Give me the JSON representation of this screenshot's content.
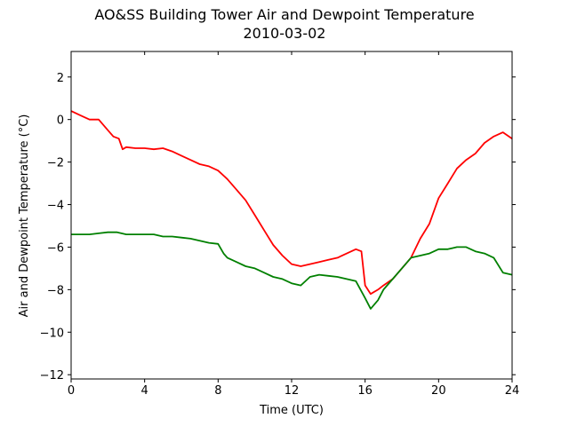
{
  "chart_data": {
    "type": "line",
    "title": "AO&SS Building Tower Air and Dewpoint Temperature",
    "subtitle": "2010-03-02",
    "xlabel": "Time (UTC)",
    "ylabel": "Air and Dewpoint Temperature (°C)",
    "xlim": [
      0,
      24
    ],
    "ylim": [
      -12.2,
      3.2
    ],
    "xticks": [
      0,
      4,
      8,
      12,
      16,
      20,
      24
    ],
    "yticks": [
      2,
      0,
      -2,
      -4,
      -6,
      -8,
      -10,
      -12
    ],
    "grid": false,
    "legend": "none",
    "series": [
      {
        "color": "#ff0000",
        "x": [
          0,
          0.5,
          1,
          1.5,
          2,
          2.3,
          2.6,
          2.8,
          3,
          3.5,
          4,
          4.5,
          5,
          5.5,
          6,
          6.5,
          7,
          7.5,
          8,
          8.5,
          9,
          9.5,
          10,
          10.5,
          11,
          11.5,
          12,
          12.5,
          13,
          13.5,
          14,
          14.5,
          15,
          15.5,
          15.8,
          16,
          16.3,
          16.7,
          17,
          17.5,
          18,
          18.5,
          19,
          19.5,
          20,
          20.5,
          21,
          21.5,
          22,
          22.5,
          23,
          23.5,
          24
        ],
        "values": [
          0.4,
          0.2,
          0.0,
          0.0,
          -0.5,
          -0.8,
          -0.9,
          -1.4,
          -1.3,
          -1.35,
          -1.35,
          -1.4,
          -1.35,
          -1.5,
          -1.7,
          -1.9,
          -2.1,
          -2.2,
          -2.4,
          -2.8,
          -3.3,
          -3.8,
          -4.5,
          -5.2,
          -5.9,
          -6.4,
          -6.8,
          -6.9,
          -6.8,
          -6.7,
          -6.6,
          -6.5,
          -6.3,
          -6.1,
          -6.2,
          -7.8,
          -8.2,
          -8.0,
          -7.8,
          -7.5,
          -7.0,
          -6.5,
          -5.6,
          -4.9,
          -3.7,
          -3.0,
          -2.3,
          -1.9,
          -1.6,
          -1.1,
          -0.8,
          -0.6,
          -0.9
        ]
      },
      {
        "color": "#008000",
        "x": [
          0,
          0.5,
          1,
          1.5,
          2,
          2.5,
          3,
          3.5,
          4,
          4.5,
          5,
          5.5,
          6,
          6.5,
          7,
          7.5,
          8,
          8.3,
          8.5,
          9,
          9.5,
          10,
          10.5,
          11,
          11.5,
          12,
          12.5,
          13,
          13.5,
          14,
          14.5,
          15,
          15.5,
          16,
          16.3,
          16.7,
          17,
          17.5,
          18,
          18.5,
          19,
          19.5,
          20,
          20.5,
          21,
          21.5,
          22,
          22.5,
          23,
          23.5,
          24
        ],
        "values": [
          -5.4,
          -5.4,
          -5.4,
          -5.35,
          -5.3,
          -5.3,
          -5.4,
          -5.4,
          -5.4,
          -5.4,
          -5.5,
          -5.5,
          -5.55,
          -5.6,
          -5.7,
          -5.8,
          -5.85,
          -6.3,
          -6.5,
          -6.7,
          -6.9,
          -7.0,
          -7.2,
          -7.4,
          -7.5,
          -7.7,
          -7.8,
          -7.4,
          -7.3,
          -7.35,
          -7.4,
          -7.5,
          -7.6,
          -8.4,
          -8.9,
          -8.5,
          -8.0,
          -7.5,
          -7.0,
          -6.5,
          -6.4,
          -6.3,
          -6.1,
          -6.1,
          -6.0,
          -6.0,
          -6.2,
          -6.3,
          -6.5,
          -7.2,
          -7.3
        ]
      }
    ]
  }
}
